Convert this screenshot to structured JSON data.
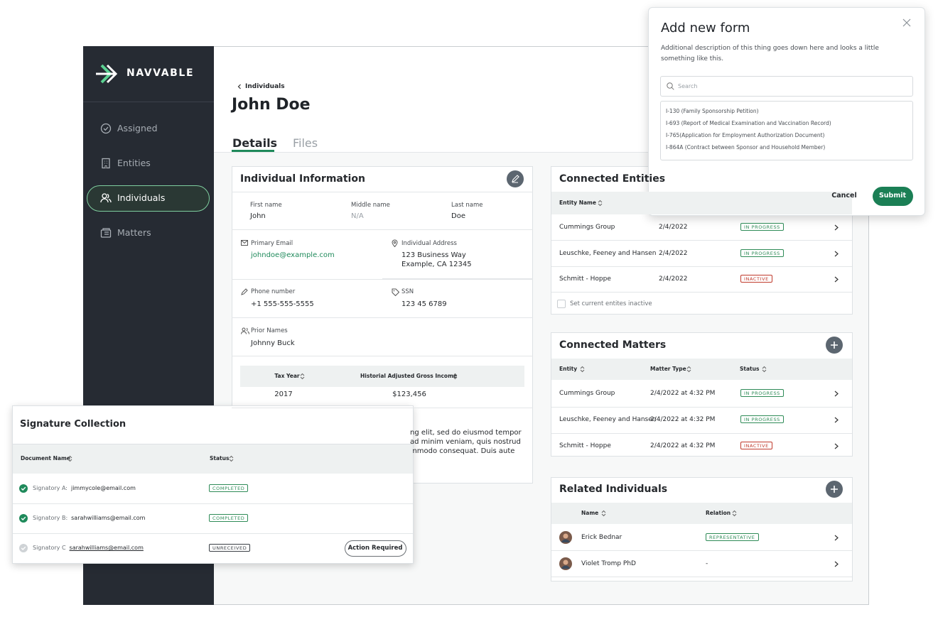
{
  "sidebar": {
    "logo": "NAVVABLE",
    "nav": [
      "Assigned",
      "Entities",
      "Individuals",
      "Matters"
    ],
    "active_index": 2
  },
  "header": {
    "breadcrumb": "Individuals",
    "title": "John Doe",
    "tabs": [
      "Details",
      "Files"
    ]
  },
  "individual_info": {
    "title": "Individual Information",
    "first_name": {
      "label": "First name",
      "value": "John"
    },
    "middle_name": {
      "label": "Middle name",
      "value": "N/A"
    },
    "last_name": {
      "label": "Last name",
      "value": "Doe"
    },
    "email": {
      "label": "Primary Email",
      "value": "johndoe@example.com"
    },
    "address": {
      "label": "Individual Address",
      "lines": [
        "123 Business Way",
        "Example, CA 12345"
      ]
    },
    "phone": {
      "label": "Phone number",
      "value": "+1 555-555-5555"
    },
    "ssn": {
      "label": "SSN",
      "value": "123 45 6789"
    },
    "prior_names": {
      "label": "Prior Names",
      "value": "Johnny Buck"
    },
    "income_table": {
      "headers": [
        "Tax Year",
        "Historial Adjusted Gross Income"
      ],
      "rows": [
        [
          "2017",
          "$123,456"
        ]
      ]
    },
    "notes": [
      "ng elit, sed do eiusmod tempor",
      "ad minim veniam, quis nostrud",
      "mmodo consequat. Duis aute"
    ]
  },
  "connected_entities": {
    "title": "Connected Entities",
    "headers": [
      "Entity Name"
    ],
    "rows": [
      {
        "name": "Cummings Group",
        "date": "2/4/2022",
        "status": {
          "label": "IN PROGRESS",
          "color": "#2e8b57"
        }
      },
      {
        "name": "Leuschke, Feeney and Hansen",
        "date": "2/4/2022",
        "status": {
          "label": "IN PROGRESS",
          "color": "#2e8b57"
        }
      },
      {
        "name": "Schmitt - Hoppe",
        "date": "2/4/2022",
        "status": {
          "label": "INACTIVE",
          "color": "#c0392b"
        }
      }
    ],
    "footer": "Set current entites inactive"
  },
  "connected_matters": {
    "title": "Connected Matters",
    "headers": [
      "Entity",
      "Matter Type",
      "Status"
    ],
    "rows": [
      {
        "name": "Cummings Group",
        "date": "2/4/2022 at 4:32 PM",
        "status": {
          "label": "IN PROGRESS",
          "color": "#2e8b57"
        }
      },
      {
        "name": "Leuschke, Feeney and Hansen",
        "date": "2/4/2022 at 4:32 PM",
        "status": {
          "label": "IN PROGRESS",
          "color": "#2e8b57"
        }
      },
      {
        "name": "Schmitt - Hoppe",
        "date": "2/4/2022 at 4:32 PM",
        "status": {
          "label": "INACTIVE",
          "color": "#c0392b"
        }
      }
    ]
  },
  "related_individuals": {
    "title": "Related Individuals",
    "headers": [
      "Name",
      "Relation"
    ],
    "rows": [
      {
        "name": "Erick Bednar",
        "relation": {
          "label": "REPRESENTATIVE",
          "color": "#2e8b57"
        }
      },
      {
        "name": "Violet Tromp PhD",
        "relation": "-"
      }
    ]
  },
  "signature_collection": {
    "title": "Signature Collection",
    "headers": [
      "Document Name",
      "Status"
    ],
    "rows": [
      {
        "signatory": "Signatory A:",
        "email": "jimmycole@email.com",
        "status": {
          "label": "COMPLETED",
          "color": "#2e8b57"
        },
        "icon_color": "#1f8a5b"
      },
      {
        "signatory": "Signatory B:",
        "email": "sarahwilliams@email.com",
        "status": {
          "label": "COMPLETED",
          "color": "#2e8b57"
        },
        "icon_color": "#1f8a5b"
      },
      {
        "signatory": "Signatory C",
        "email": "sarahwilliams@email.com",
        "status": {
          "label": "UNRECEIVED",
          "color": "#3a3f45"
        },
        "icon_color": "#cfd3d6",
        "action": "Action Required"
      }
    ]
  },
  "modal": {
    "title": "Add new form",
    "description": "Additional description of this thing goes down here and looks a little something like this.",
    "search_placeholder": "Search",
    "options": [
      "I-130 (Family Sponsorship Petition)",
      "I-693 (Report of Medical Examination and Vaccination Record)",
      "I-765(Application for Employment Authorization Document)",
      "I-864A (Contract between Sponsor and Household Member)"
    ],
    "cancel": "Cancel",
    "submit": "Submit"
  }
}
